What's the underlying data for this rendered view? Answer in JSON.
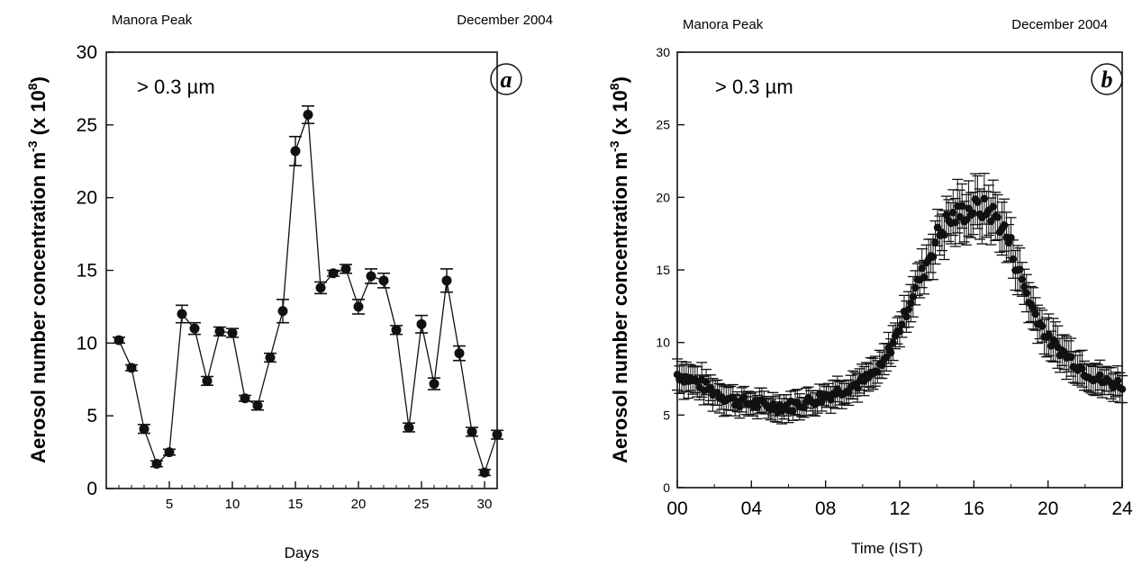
{
  "chart_data": [
    {
      "type": "line",
      "panel_label": "a",
      "header_left": "Manora Peak",
      "header_right": "December 2004",
      "annotation": "> 0.3 µm",
      "xlabel": "Days",
      "ylabel": "Aerosol number concentration m",
      "ylabel_exp": "-3",
      "ylabel_unit": "(x 10",
      "ylabel_unit_exp": "8",
      "xlim": [
        0,
        31
      ],
      "ylim": [
        0,
        30
      ],
      "xticks": [
        5,
        10,
        15,
        20,
        25,
        30
      ],
      "yticks": [
        0,
        5,
        10,
        15,
        20,
        25,
        30
      ],
      "series": [
        {
          "x": [
            1,
            2,
            3,
            4,
            5,
            6,
            7,
            8,
            9,
            10,
            11,
            12,
            13,
            14,
            15,
            16,
            17,
            18,
            19,
            20,
            21,
            22,
            23,
            24,
            25,
            26,
            27,
            28,
            29,
            30,
            31
          ],
          "y": [
            10.2,
            8.3,
            4.1,
            1.7,
            2.5,
            12.0,
            11.0,
            7.4,
            10.8,
            10.7,
            6.2,
            5.7,
            9.0,
            12.2,
            23.2,
            25.7,
            13.8,
            14.8,
            15.1,
            12.5,
            14.6,
            14.3,
            10.9,
            4.2,
            11.3,
            7.2,
            14.3,
            9.3,
            3.9,
            1.1,
            3.7
          ],
          "err": [
            0.2,
            0.2,
            0.3,
            0.2,
            0.2,
            0.6,
            0.4,
            0.3,
            0.3,
            0.3,
            0.2,
            0.3,
            0.3,
            0.8,
            1.0,
            0.6,
            0.4,
            0.2,
            0.3,
            0.5,
            0.5,
            0.5,
            0.3,
            0.3,
            0.6,
            0.4,
            0.8,
            0.5,
            0.3,
            0.2,
            0.3
          ]
        }
      ]
    },
    {
      "type": "scatter",
      "panel_label": "b",
      "header_left": "Manora Peak",
      "header_right": "December 2004",
      "annotation": "> 0.3 µm",
      "xlabel": "Time (IST)",
      "ylabel": "Aerosol number concentration m",
      "ylabel_exp": "-3",
      "ylabel_unit": "(x 10",
      "ylabel_unit_exp": "8",
      "xlim": [
        0,
        24
      ],
      "ylim": [
        0,
        30
      ],
      "xticks": [
        "00",
        "04",
        "08",
        "12",
        "16",
        "20",
        "24"
      ],
      "yticks": [
        0,
        5,
        10,
        15,
        20,
        25,
        30
      ],
      "series": [
        {
          "x": [
            0,
            1,
            2,
            3,
            4,
            5,
            6,
            7,
            8,
            9,
            10,
            11,
            12,
            13,
            14,
            14.5,
            15,
            15.5,
            16,
            16.5,
            17,
            17.5,
            18,
            19,
            20,
            21,
            22,
            23,
            24
          ],
          "y": [
            7.8,
            7.3,
            6.6,
            6.0,
            5.8,
            5.6,
            5.6,
            5.9,
            6.3,
            6.8,
            7.3,
            8.2,
            11.0,
            14.2,
            17.2,
            18.2,
            18.7,
            19.0,
            19.2,
            19.2,
            18.9,
            18.1,
            16.6,
            12.8,
            10.2,
            9.1,
            8.0,
            7.3,
            7.1
          ],
          "err": [
            1.0,
            1.0,
            0.9,
            0.8,
            0.7,
            0.7,
            0.7,
            0.8,
            0.8,
            0.8,
            0.8,
            0.9,
            1.0,
            1.2,
            1.4,
            1.5,
            1.5,
            1.5,
            1.6,
            1.6,
            1.6,
            1.5,
            1.4,
            1.3,
            1.2,
            1.2,
            1.0,
            0.9,
            0.9
          ]
        }
      ]
    }
  ]
}
